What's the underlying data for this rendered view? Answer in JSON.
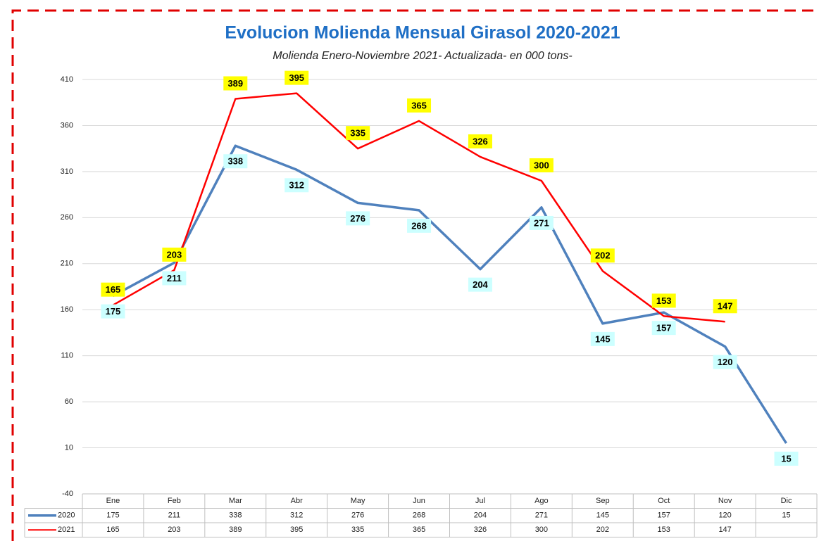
{
  "chart_data": {
    "type": "line",
    "title": "Evolucion Molienda Mensual Girasol 2020-2021",
    "subtitle": "Molienda Enero-Noviembre  2021- Actualizada-  en 000 tons-",
    "categories": [
      "Ene",
      "Feb",
      "Mar",
      "Abr",
      "May",
      "Jun",
      "Jul",
      "Ago",
      "Sep",
      "Oct",
      "Nov",
      "Dic"
    ],
    "series": [
      {
        "name": "2020",
        "color": "#4f81bd",
        "values": [
          175,
          211,
          338,
          312,
          276,
          268,
          204,
          271,
          145,
          157,
          120,
          15
        ]
      },
      {
        "name": "2021",
        "color": "#ff0000",
        "values": [
          165,
          203,
          389,
          395,
          335,
          365,
          326,
          300,
          202,
          153,
          147,
          null
        ]
      }
    ],
    "ylim": [
      -40,
      410
    ],
    "yticks": [
      -40,
      10,
      60,
      110,
      160,
      210,
      260,
      310,
      360,
      410
    ],
    "grid": true
  }
}
